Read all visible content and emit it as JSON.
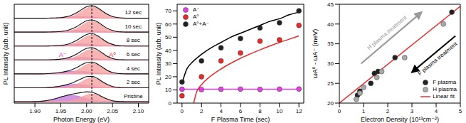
{
  "chart_data": [
    {
      "type": "area",
      "x_label": "Photon Energy (eV)",
      "y_label": "PL Intensity (arb. unit)",
      "x": [
        1.86,
        1.87,
        1.88,
        1.89,
        1.9,
        1.91,
        1.92,
        1.93,
        1.94,
        1.95,
        1.96,
        1.97,
        1.98,
        1.99,
        2.0,
        2.01,
        2.02,
        2.03,
        2.04,
        2.05,
        2.06,
        2.07,
        2.08,
        2.09,
        2.1,
        2.11,
        2.12
      ],
      "xlim": [
        1.86,
        2.12
      ],
      "xticks": [
        {
          "value": 1.9,
          "label": "1.90"
        },
        {
          "value": 1.95,
          "label": "1.95"
        },
        {
          "value": 2.0,
          "label": "2.00"
        },
        {
          "value": 2.05,
          "label": "2.05"
        },
        {
          "value": 2.1,
          "label": "2.10"
        }
      ],
      "ylim": [
        -10,
        700
      ],
      "tick_labels": "x",
      "color": "#111111",
      "reference_lines": [
        2.01
      ],
      "components": [
        {
          "name": "A⁻",
          "color": "#c77ad8"
        },
        {
          "name": "A⁰",
          "color": "#f6a0a0"
        }
      ],
      "series": [
        {
          "name": "Pristine",
          "baseline": 0,
          "values": [
            [
              0,
              0,
              0,
              0,
              1,
              3,
              6,
              13,
              22,
              33,
              42,
              45,
              42,
              33,
              22,
              13,
              6,
              3,
              1,
              0,
              0,
              0,
              0,
              0,
              0,
              0,
              0
            ],
            [
              0,
              0,
              0,
              0,
              0,
              0,
              0,
              0,
              0,
              1,
              2,
              7,
              18,
              33,
              49,
              55,
              49,
              33,
              18,
              7,
              2,
              1,
              0,
              0,
              0,
              0,
              0
            ]
          ]
        },
        {
          "name": "2 sec",
          "baseline": 100,
          "values": [
            [
              0,
              0,
              0,
              0,
              0,
              0,
              1,
              3,
              7,
              12,
              18,
              23,
              25,
              23,
              18,
              12,
              7,
              3,
              1,
              0,
              0,
              0,
              0,
              0,
              0,
              0,
              0
            ],
            [
              0,
              0,
              0,
              0,
              0,
              0,
              0,
              0,
              0,
              1,
              3,
              9,
              23,
              42,
              62,
              70,
              62,
              42,
              23,
              9,
              3,
              1,
              0,
              0,
              0,
              0,
              0
            ]
          ]
        },
        {
          "name": "4 sec",
          "baseline": 200,
          "values": [
            [
              0,
              0,
              0,
              0,
              0,
              0,
              1,
              3,
              6,
              10,
              15,
              18,
              20,
              18,
              15,
              10,
              6,
              3,
              1,
              0,
              0,
              0,
              0,
              0,
              0,
              0,
              0
            ],
            [
              0,
              0,
              0,
              0,
              0,
              0,
              0,
              0,
              0,
              1,
              3,
              10,
              24,
              46,
              66,
              75,
              66,
              46,
              24,
              10,
              3,
              1,
              0,
              0,
              0,
              0,
              0
            ]
          ]
        },
        {
          "name": "6 sec",
          "baseline": 300,
          "values": [
            [
              0,
              0,
              0,
              0,
              0,
              0,
              0,
              1,
              2,
              5,
              9,
              13,
              17,
              18,
              17,
              13,
              9,
              5,
              2,
              1,
              0,
              0,
              0,
              0,
              0,
              0,
              0
            ],
            [
              0,
              0,
              0,
              0,
              0,
              0,
              0,
              0,
              0,
              1,
              3,
              10,
              24,
              46,
              66,
              75,
              66,
              46,
              24,
              10,
              3,
              1,
              0,
              0,
              0,
              0,
              0
            ]
          ]
        },
        {
          "name": "8 sec",
          "baseline": 400,
          "values": [
            [
              0,
              0,
              0,
              0,
              0,
              0,
              0,
              1,
              2,
              4,
              7,
              11,
              14,
              15,
              14,
              11,
              7,
              4,
              2,
              1,
              0,
              0,
              0,
              0,
              0,
              0,
              0
            ],
            [
              0,
              0,
              0,
              0,
              0,
              0,
              0,
              0,
              0,
              1,
              3,
              11,
              25,
              47,
              69,
              78,
              69,
              47,
              25,
              11,
              3,
              1,
              0,
              0,
              0,
              0,
              0
            ]
          ]
        },
        {
          "name": "10 sec",
          "baseline": 500,
          "values": [
            [
              0,
              0,
              0,
              0,
              0,
              0,
              0,
              1,
              2,
              4,
              7,
              10,
              13,
              14,
              13,
              10,
              7,
              4,
              2,
              1,
              0,
              0,
              0,
              0,
              0,
              0,
              0
            ],
            [
              0,
              0,
              0,
              0,
              0,
              0,
              0,
              0,
              0,
              1,
              3,
              11,
              25,
              47,
              69,
              78,
              69,
              47,
              25,
              11,
              3,
              1,
              0,
              0,
              0,
              0,
              0
            ]
          ]
        },
        {
          "name": "12 sec",
          "baseline": 600,
          "values": [
            [
              0,
              0,
              0,
              0,
              0,
              0,
              0,
              1,
              2,
              3,
              6,
              9,
              11,
              12,
              11,
              9,
              6,
              3,
              2,
              1,
              0,
              0,
              0,
              0,
              0,
              0,
              0
            ],
            [
              0,
              0,
              0,
              0,
              0,
              0,
              0,
              0,
              0,
              1,
              4,
              11,
              26,
              49,
              71,
              80,
              71,
              49,
              26,
              11,
              4,
              1,
              0,
              0,
              0,
              0,
              0
            ]
          ]
        }
      ]
    },
    {
      "type": "scatter",
      "x_label": "F Plasma Time (sec)",
      "y_label": "PL Intensity (arb. unit)",
      "xlim": [
        -0.5,
        12.5
      ],
      "xticks": [
        0,
        2,
        4,
        6,
        8,
        10,
        12
      ],
      "ylim": [
        0,
        75
      ],
      "yticks": [
        0,
        10,
        20,
        30,
        40,
        50,
        60,
        70
      ],
      "legend": "upper left",
      "series": [
        {
          "name": "A⁻",
          "type": "scatter",
          "marker": "circle",
          "color": "#e040e0",
          "x": [
            0,
            2,
            4,
            6,
            8,
            10,
            12
          ],
          "values": [
            10.5,
            10.2,
            10.5,
            10.6,
            10.4,
            10.6,
            10.7
          ]
        },
        {
          "name": "A⁰",
          "type": "scatter",
          "marker": "circle",
          "color": "#e82a2a",
          "x": [
            0,
            2,
            4,
            6,
            8,
            10,
            12
          ],
          "values": [
            5.5,
            20,
            32,
            38,
            47,
            48,
            59
          ]
        },
        {
          "name": "A⁰+A⁻",
          "type": "scatter",
          "marker": "circle",
          "color": "#222222",
          "x": [
            0,
            2,
            4,
            6,
            8,
            10,
            12
          ],
          "values": [
            16,
            32,
            42,
            49,
            57,
            61,
            70
          ]
        },
        {
          "type": "line",
          "line_style": "solid",
          "color": "#e040e0",
          "x": [
            0,
            12
          ],
          "values": [
            10.5,
            10.5
          ]
        },
        {
          "type": "line",
          "line_style": "solid",
          "color": "#e82a2a",
          "x": [
            1.2,
            1.5,
            2,
            3,
            4,
            5,
            6,
            7,
            8,
            9,
            10,
            11,
            12
          ],
          "values": [
            0,
            8.5,
            13.9,
            20.8,
            25.9,
            30.2,
            34,
            37.3,
            40.4,
            43.3,
            46,
            48.5,
            51
          ]
        },
        {
          "type": "line",
          "line_style": "solid",
          "color": "#000000",
          "x": [
            0,
            0.5,
            1,
            2,
            3,
            4,
            5,
            6,
            7,
            8,
            9,
            10,
            11,
            12
          ],
          "values": [
            15,
            26,
            30.6,
            37,
            42,
            46,
            50,
            53,
            56,
            59,
            62,
            64,
            67,
            69
          ]
        }
      ]
    },
    {
      "type": "scatter",
      "x_label": "Electron Density (10¹³cm⁻²)",
      "y_label": "ωA⁰ - ωA⁻ (meV)",
      "xlim": [
        0,
        5
      ],
      "xticks": [
        0,
        1,
        2,
        3,
        4,
        5
      ],
      "ylim": [
        20,
        45
      ],
      "yticks": [
        20,
        25,
        30,
        35,
        40,
        45
      ],
      "legend": "lower right",
      "annotations": [
        {
          "text": "H plasma treatment",
          "color": "#999999"
        },
        {
          "text": "F plasma treatment",
          "color": "#000000"
        }
      ],
      "series": [
        {
          "name": "F plasma",
          "type": "scatter",
          "marker": "circle",
          "color": "#222222",
          "x": [
            0.75,
            0.85,
            1.3,
            1.45,
            1.6,
            2.3,
            4.65
          ],
          "values": [
            22,
            23,
            25,
            27.5,
            28,
            31.5,
            43
          ]
        },
        {
          "name": "H plasma",
          "type": "scatter",
          "marker": "circle",
          "color": "#aaaaaa",
          "x": [
            0.7,
            0.85,
            1.0,
            1.55,
            1.75,
            2.7,
            4.3
          ],
          "values": [
            21,
            22.5,
            24,
            26.5,
            28,
            31.5,
            40
          ]
        },
        {
          "name": "Linear fit",
          "type": "line",
          "line_style": "solid",
          "color": "#e83030",
          "x": [
            0,
            5
          ],
          "values": [
            20,
            44.5
          ]
        }
      ]
    }
  ]
}
